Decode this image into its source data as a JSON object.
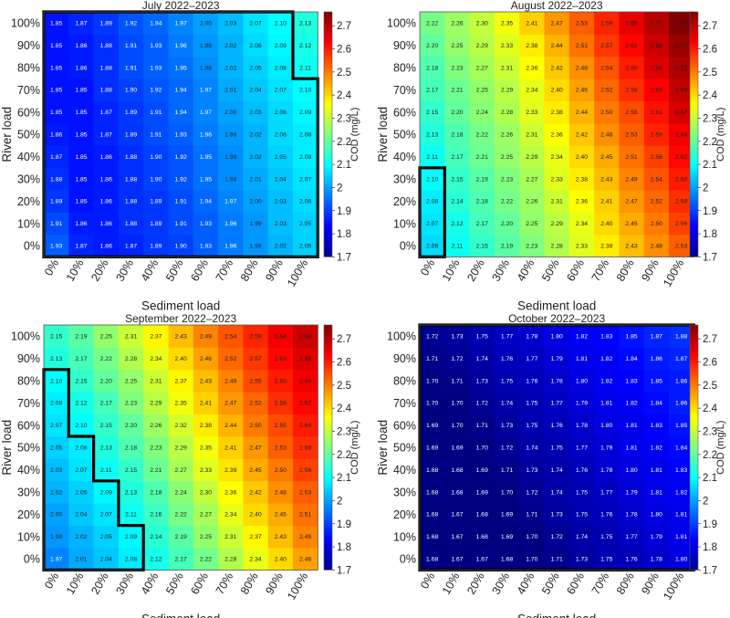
{
  "chart_data": [
    {
      "type": "heatmap",
      "title": "July 2022–2023",
      "xlabel": "Sediment load",
      "ylabel": "River load",
      "colorbar_label": "COD (mg/L)",
      "x": [
        "0%",
        "10%",
        "20%",
        "30%",
        "40%",
        "50%",
        "60%",
        "70%",
        "80%",
        "90%",
        "100%"
      ],
      "y": [
        "0%",
        "10%",
        "20%",
        "30%",
        "40%",
        "50%",
        "60%",
        "70%",
        "80%",
        "90%",
        "100%"
      ],
      "values_bottom_to_top": [
        [
          1.93,
          1.87,
          1.86,
          1.87,
          1.89,
          1.9,
          1.93,
          1.96,
          1.99,
          2.02,
          2.05
        ],
        [
          1.91,
          1.86,
          1.86,
          1.88,
          1.89,
          1.91,
          1.93,
          1.96,
          1.99,
          2.03,
          2.05
        ],
        [
          1.89,
          1.85,
          1.86,
          1.88,
          1.89,
          1.91,
          1.94,
          1.97,
          2.0,
          2.03,
          2.06
        ],
        [
          1.88,
          1.85,
          1.86,
          1.88,
          1.9,
          1.92,
          1.95,
          1.98,
          2.01,
          2.04,
          2.07
        ],
        [
          1.87,
          1.85,
          1.86,
          1.88,
          1.9,
          1.92,
          1.95,
          1.98,
          2.02,
          2.05,
          2.08
        ],
        [
          1.86,
          1.85,
          1.87,
          1.89,
          1.91,
          1.93,
          1.96,
          1.99,
          2.02,
          2.06,
          2.08
        ],
        [
          1.85,
          1.85,
          1.87,
          1.89,
          1.91,
          1.94,
          1.97,
          2.0,
          2.03,
          2.06,
          2.09
        ],
        [
          1.85,
          1.85,
          1.88,
          1.9,
          1.92,
          1.94,
          1.97,
          2.01,
          2.04,
          2.07,
          2.1
        ],
        [
          1.85,
          1.86,
          1.88,
          1.91,
          1.93,
          1.95,
          1.98,
          2.02,
          2.05,
          2.08,
          2.11
        ],
        [
          1.85,
          1.86,
          1.88,
          1.91,
          1.93,
          1.96,
          1.99,
          2.02,
          2.06,
          2.09,
          2.12
        ],
        [
          1.85,
          1.87,
          1.89,
          1.92,
          1.94,
          1.97,
          2.0,
          2.03,
          2.07,
          2.1,
          2.13
        ]
      ],
      "highlight_upper_by_col": [
        10,
        10,
        10,
        10,
        10,
        10,
        10,
        10,
        10,
        10,
        7
      ]
    },
    {
      "type": "heatmap",
      "title": "August 2022–2023",
      "xlabel": "Sediment load",
      "ylabel": "River load",
      "colorbar_label": "COD (mg/L)",
      "x": [
        "0%",
        "10%",
        "20%",
        "30%",
        "40%",
        "50%",
        "60%",
        "70%",
        "80%",
        "90%",
        "100%"
      ],
      "y": [
        "0%",
        "10%",
        "20%",
        "30%",
        "40%",
        "50%",
        "60%",
        "70%",
        "80%",
        "90%",
        "100%"
      ],
      "values_bottom_to_top": [
        [
          2.06,
          2.11,
          2.15,
          2.19,
          2.23,
          2.28,
          2.33,
          2.38,
          2.43,
          2.48,
          2.53
        ],
        [
          2.07,
          2.12,
          2.17,
          2.2,
          2.25,
          2.29,
          2.34,
          2.4,
          2.45,
          2.5,
          2.56
        ],
        [
          2.08,
          2.14,
          2.18,
          2.22,
          2.26,
          2.31,
          2.36,
          2.41,
          2.47,
          2.52,
          2.58
        ],
        [
          2.1,
          2.15,
          2.19,
          2.23,
          2.27,
          2.33,
          2.38,
          2.43,
          2.49,
          2.54,
          2.6
        ],
        [
          2.11,
          2.17,
          2.21,
          2.25,
          2.29,
          2.34,
          2.4,
          2.45,
          2.51,
          2.56,
          2.62
        ],
        [
          2.13,
          2.18,
          2.22,
          2.26,
          2.31,
          2.36,
          2.42,
          2.48,
          2.53,
          2.59,
          2.64
        ],
        [
          2.15,
          2.2,
          2.24,
          2.28,
          2.33,
          2.38,
          2.44,
          2.5,
          2.55,
          2.61,
          2.67
        ],
        [
          2.17,
          2.21,
          2.25,
          2.29,
          2.34,
          2.4,
          2.46,
          2.52,
          2.58,
          2.63,
          2.69
        ],
        [
          2.18,
          2.23,
          2.27,
          2.31,
          2.36,
          2.42,
          2.48,
          2.54,
          2.6,
          2.66,
          2.71
        ],
        [
          2.2,
          2.25,
          2.29,
          2.33,
          2.38,
          2.44,
          2.51,
          2.57,
          2.62,
          2.68,
          2.73
        ],
        [
          2.22,
          2.26,
          2.3,
          2.35,
          2.41,
          2.47,
          2.53,
          2.59,
          2.65,
          2.7,
          2.76
        ]
      ],
      "highlight_upper_by_col": [
        3,
        -1,
        -1,
        -1,
        -1,
        -1,
        -1,
        -1,
        -1,
        -1,
        -1
      ]
    },
    {
      "type": "heatmap",
      "title": "September 2022–2023",
      "xlabel": "Sediment load",
      "ylabel": "River load",
      "colorbar_label": "COD (mg/L)",
      "x": [
        "0%",
        "10%",
        "20%",
        "30%",
        "40%",
        "50%",
        "60%",
        "70%",
        "80%",
        "90%",
        "100%"
      ],
      "y": [
        "0%",
        "10%",
        "20%",
        "30%",
        "40%",
        "50%",
        "60%",
        "70%",
        "80%",
        "90%",
        "100%"
      ],
      "values_bottom_to_top": [
        [
          1.97,
          2.01,
          2.04,
          2.08,
          2.12,
          2.17,
          2.22,
          2.28,
          2.34,
          2.4,
          2.46
        ],
        [
          1.99,
          2.02,
          2.05,
          2.09,
          2.14,
          2.19,
          2.25,
          2.31,
          2.37,
          2.43,
          2.49
        ],
        [
          2.0,
          2.04,
          2.07,
          2.11,
          2.16,
          2.22,
          2.27,
          2.34,
          2.4,
          2.45,
          2.51
        ],
        [
          2.02,
          2.05,
          2.09,
          2.13,
          2.18,
          2.24,
          2.3,
          2.36,
          2.42,
          2.48,
          2.53
        ],
        [
          2.03,
          2.07,
          2.11,
          2.15,
          2.21,
          2.27,
          2.33,
          2.39,
          2.45,
          2.5,
          2.56
        ],
        [
          2.05,
          2.08,
          2.13,
          2.18,
          2.23,
          2.29,
          2.35,
          2.41,
          2.47,
          2.53,
          2.58
        ],
        [
          2.07,
          2.1,
          2.15,
          2.2,
          2.26,
          2.32,
          2.38,
          2.44,
          2.5,
          2.55,
          2.6
        ],
        [
          2.08,
          2.12,
          2.17,
          2.23,
          2.29,
          2.35,
          2.41,
          2.47,
          2.52,
          2.58,
          2.62
        ],
        [
          2.1,
          2.15,
          2.2,
          2.25,
          2.31,
          2.37,
          2.43,
          2.49,
          2.55,
          2.6,
          2.64
        ],
        [
          2.13,
          2.17,
          2.22,
          2.28,
          2.34,
          2.4,
          2.46,
          2.52,
          2.57,
          2.62,
          2.66
        ],
        [
          2.15,
          2.19,
          2.25,
          2.31,
          2.37,
          2.43,
          2.49,
          2.54,
          2.59,
          2.64,
          2.68
        ]
      ],
      "highlight_upper_by_col": [
        8,
        5,
        3,
        1,
        -1,
        -1,
        -1,
        -1,
        -1,
        -1,
        -1
      ]
    },
    {
      "type": "heatmap",
      "title": "October 2022–2023",
      "xlabel": "Sediment load",
      "ylabel": "River load",
      "colorbar_label": "COD (mg/L)",
      "x": [
        "0%",
        "10%",
        "20%",
        "30%",
        "40%",
        "50%",
        "60%",
        "70%",
        "80%",
        "90%",
        "100%"
      ],
      "y": [
        "0%",
        "10%",
        "20%",
        "30%",
        "40%",
        "50%",
        "60%",
        "70%",
        "80%",
        "90%",
        "100%"
      ],
      "values_bottom_to_top": [
        [
          1.68,
          1.67,
          1.67,
          1.68,
          1.7,
          1.71,
          1.73,
          1.75,
          1.76,
          1.78,
          1.8
        ],
        [
          1.68,
          1.67,
          1.68,
          1.69,
          1.7,
          1.72,
          1.74,
          1.75,
          1.77,
          1.79,
          1.81
        ],
        [
          1.68,
          1.67,
          1.68,
          1.69,
          1.71,
          1.73,
          1.75,
          1.76,
          1.78,
          1.8,
          1.81
        ],
        [
          1.68,
          1.68,
          1.69,
          1.7,
          1.72,
          1.74,
          1.75,
          1.77,
          1.79,
          1.81,
          1.82
        ],
        [
          1.68,
          1.68,
          1.69,
          1.71,
          1.73,
          1.74,
          1.76,
          1.78,
          1.8,
          1.81,
          1.83
        ],
        [
          1.69,
          1.69,
          1.7,
          1.72,
          1.74,
          1.75,
          1.77,
          1.79,
          1.81,
          1.82,
          1.84
        ],
        [
          1.69,
          1.7,
          1.71,
          1.73,
          1.75,
          1.76,
          1.78,
          1.8,
          1.81,
          1.83,
          1.85
        ],
        [
          1.7,
          1.7,
          1.72,
          1.74,
          1.75,
          1.77,
          1.79,
          1.81,
          1.82,
          1.84,
          1.86
        ],
        [
          1.7,
          1.71,
          1.73,
          1.75,
          1.76,
          1.78,
          1.8,
          1.82,
          1.83,
          1.85,
          1.86
        ],
        [
          1.71,
          1.72,
          1.74,
          1.76,
          1.77,
          1.79,
          1.81,
          1.82,
          1.84,
          1.86,
          1.87
        ],
        [
          1.72,
          1.73,
          1.75,
          1.77,
          1.78,
          1.8,
          1.82,
          1.83,
          1.85,
          1.87,
          1.88
        ]
      ],
      "highlight_upper_by_col": [
        10,
        10,
        10,
        10,
        10,
        10,
        10,
        10,
        10,
        10,
        10
      ]
    }
  ],
  "colorbar": {
    "vmin": 1.7,
    "vmax": 2.76,
    "ticks": [
      1.7,
      1.8,
      1.9,
      2,
      2.1,
      2.2,
      2.3,
      2.4,
      2.5,
      2.6,
      2.7
    ],
    "tick_labels": [
      "1.7",
      "1.8",
      "1.9",
      "2",
      "2.1",
      "2.2",
      "2.3",
      "2.4",
      "2.5",
      "2.6",
      "2.7"
    ]
  }
}
